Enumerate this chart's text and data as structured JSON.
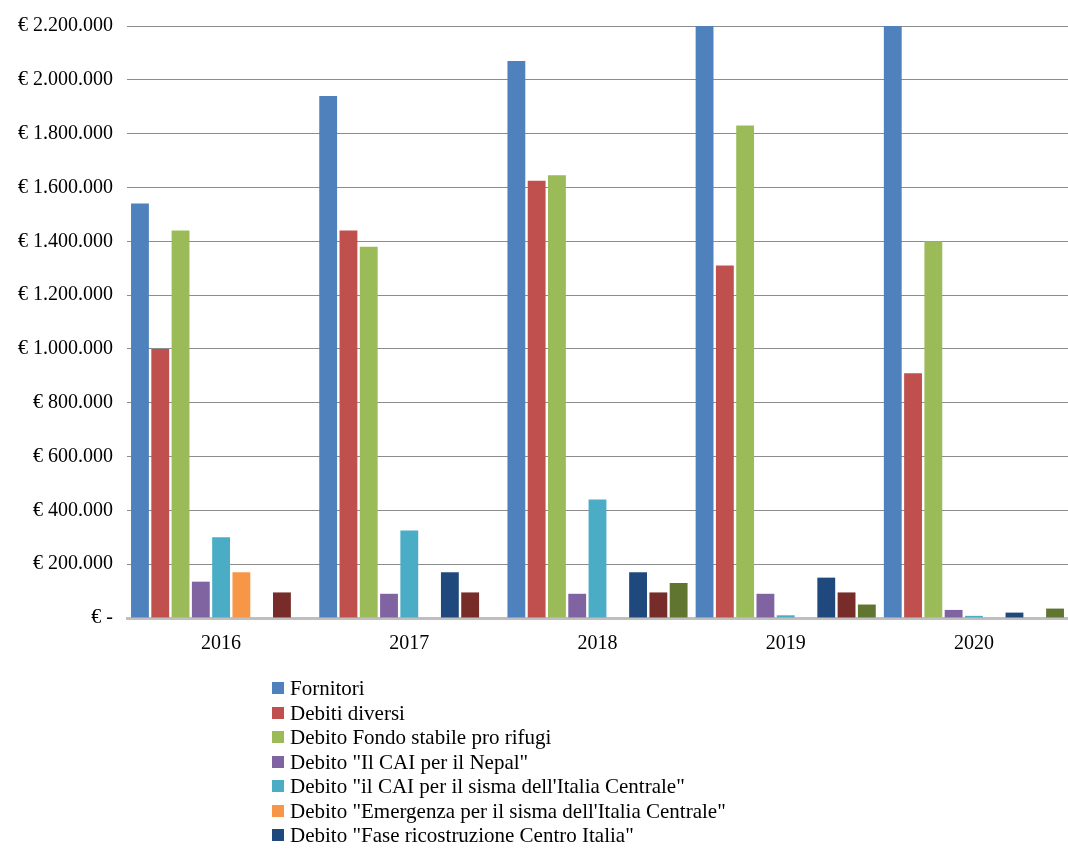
{
  "chart_data": {
    "type": "bar",
    "categories": [
      "2016",
      "2017",
      "2018",
      "2019",
      "2020"
    ],
    "series": [
      {
        "name": "Fornitori",
        "color": "#4f81bd",
        "values": [
          1540000,
          1940000,
          2070000,
          2200000,
          2200000
        ]
      },
      {
        "name": "Debiti diversi",
        "color": "#c0504d",
        "values": [
          1000000,
          1440000,
          1625000,
          1310000,
          910000
        ]
      },
      {
        "name": "Debito Fondo stabile pro rifugi",
        "color": "#9bbb59",
        "values": [
          1440000,
          1380000,
          1645000,
          1830000,
          1400000
        ]
      },
      {
        "name": "Debito \"Il CAI per il Nepal\"",
        "color": "#8064a2",
        "values": [
          135000,
          90000,
          90000,
          90000,
          30000
        ]
      },
      {
        "name": "Debito \"il CAI per il sisma dell'Italia Centrale\"",
        "color": "#4bacc6",
        "values": [
          300000,
          325000,
          440000,
          10000,
          8000
        ]
      },
      {
        "name": "Debito \"Emergenza per il sisma dell'Italia Centrale\"",
        "color": "#f79646",
        "values": [
          170000,
          null,
          null,
          null,
          null
        ]
      },
      {
        "name": "Debito \"Fase ricostruzione Centro Italia\"",
        "color": "#1f497d",
        "values": [
          null,
          170000,
          170000,
          150000,
          20000
        ]
      },
      {
        "color": "#772c2a",
        "values": [
          95000,
          95000,
          95000,
          95000,
          null
        ]
      },
      {
        "color": "#5f7530",
        "values": [
          null,
          null,
          130000,
          50000,
          35000
        ]
      }
    ],
    "ylim": [
      0,
      2200000
    ],
    "yticks": [
      {
        "value": 0,
        "label": "€ -"
      },
      {
        "value": 200000,
        "label": "€ 200.000"
      },
      {
        "value": 400000,
        "label": "€ 400.000"
      },
      {
        "value": 600000,
        "label": "€ 600.000"
      },
      {
        "value": 800000,
        "label": "€ 800.000"
      },
      {
        "value": 1000000,
        "label": "€ 1.000.000"
      },
      {
        "value": 1200000,
        "label": "€ 1.200.000"
      },
      {
        "value": 1400000,
        "label": "€ 1.400.000"
      },
      {
        "value": 1600000,
        "label": "€ 1.600.000"
      },
      {
        "value": 1800000,
        "label": "€ 1.800.000"
      },
      {
        "value": 2000000,
        "label": "€ 2.000.000"
      },
      {
        "value": 2200000,
        "label": "€ 2.200.000"
      }
    ],
    "grid": "y",
    "legend": "bottom"
  }
}
